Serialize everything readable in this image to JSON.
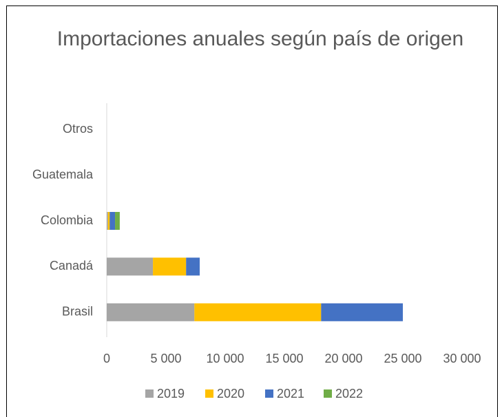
{
  "chart_data": {
    "type": "stacked_barh",
    "title": "Importaciones anuales según país de origen",
    "categories": [
      "Brasil",
      "Canadá",
      "Colombia",
      "Guatemala",
      "Otros"
    ],
    "series": [
      {
        "name": "2019",
        "color": "#a5a5a5",
        "values": [
          7400,
          3900,
          100,
          0,
          0
        ]
      },
      {
        "name": "2020",
        "color": "#ffc000",
        "values": [
          10700,
          2800,
          150,
          0,
          0
        ]
      },
      {
        "name": "2021",
        "color": "#4472c4",
        "values": [
          6900,
          1150,
          450,
          0,
          0
        ]
      },
      {
        "name": "2022",
        "color": "#70ad47",
        "values": [
          0,
          0,
          400,
          0,
          0
        ]
      }
    ],
    "xlim": [
      0,
      30000
    ],
    "xticks": [
      0,
      {
        "value": 5000,
        "label": "5 000"
      },
      {
        "value": 10000,
        "label": "10 000"
      },
      {
        "value": 15000,
        "label": "15 000"
      },
      {
        "value": 20000,
        "label": "20 000"
      },
      {
        "value": 25000,
        "label": "25 000"
      },
      {
        "value": 30000,
        "label": "30 000"
      }
    ],
    "grid": false,
    "legend": "bottom"
  }
}
